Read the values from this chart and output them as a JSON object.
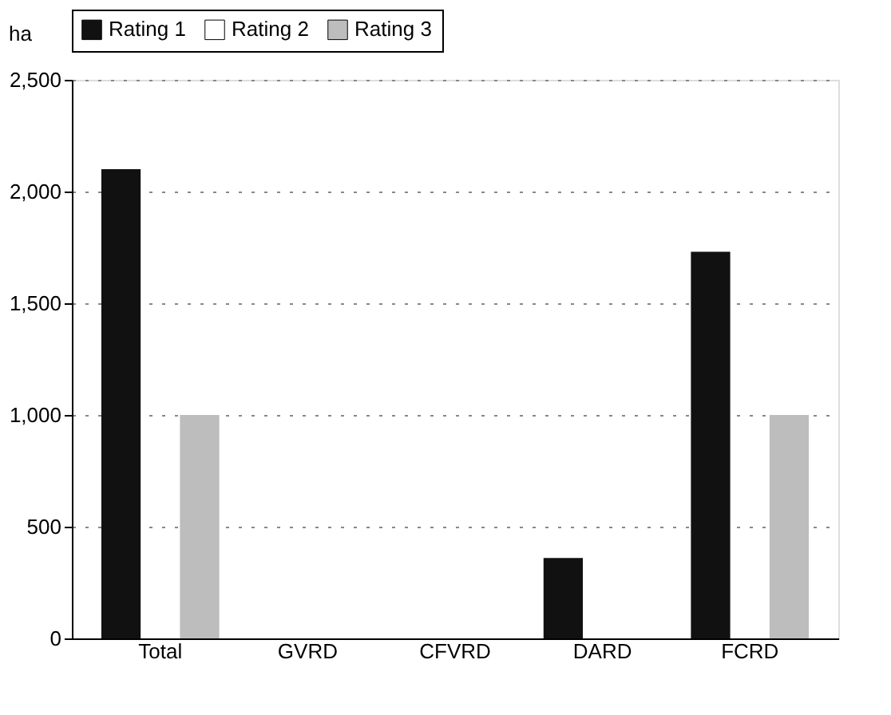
{
  "chart_data": {
    "type": "bar",
    "ylabel": "ha",
    "categories": [
      "Total",
      "GVRD",
      "CFVRD",
      "DARD",
      "FCRD"
    ],
    "series": [
      {
        "name": "Rating 1",
        "color": "#111111",
        "values": [
          2100,
          0,
          0,
          360,
          1730
        ]
      },
      {
        "name": "Rating 2",
        "color": "#ffffff",
        "values": [
          0,
          0,
          0,
          0,
          0
        ]
      },
      {
        "name": "Rating 3",
        "color": "#bdbdbd",
        "values": [
          1000,
          0,
          0,
          0,
          1000
        ]
      }
    ],
    "ylim": [
      0,
      2500
    ],
    "yticks": [
      0,
      500,
      {
        "value": 1000,
        "label": "1,000"
      },
      {
        "value": 1500,
        "label": "1,500"
      },
      {
        "value": 2000,
        "label": "2,000"
      },
      {
        "value": 2500,
        "label": "2,500"
      }
    ],
    "grid": "y",
    "legend": "top"
  }
}
